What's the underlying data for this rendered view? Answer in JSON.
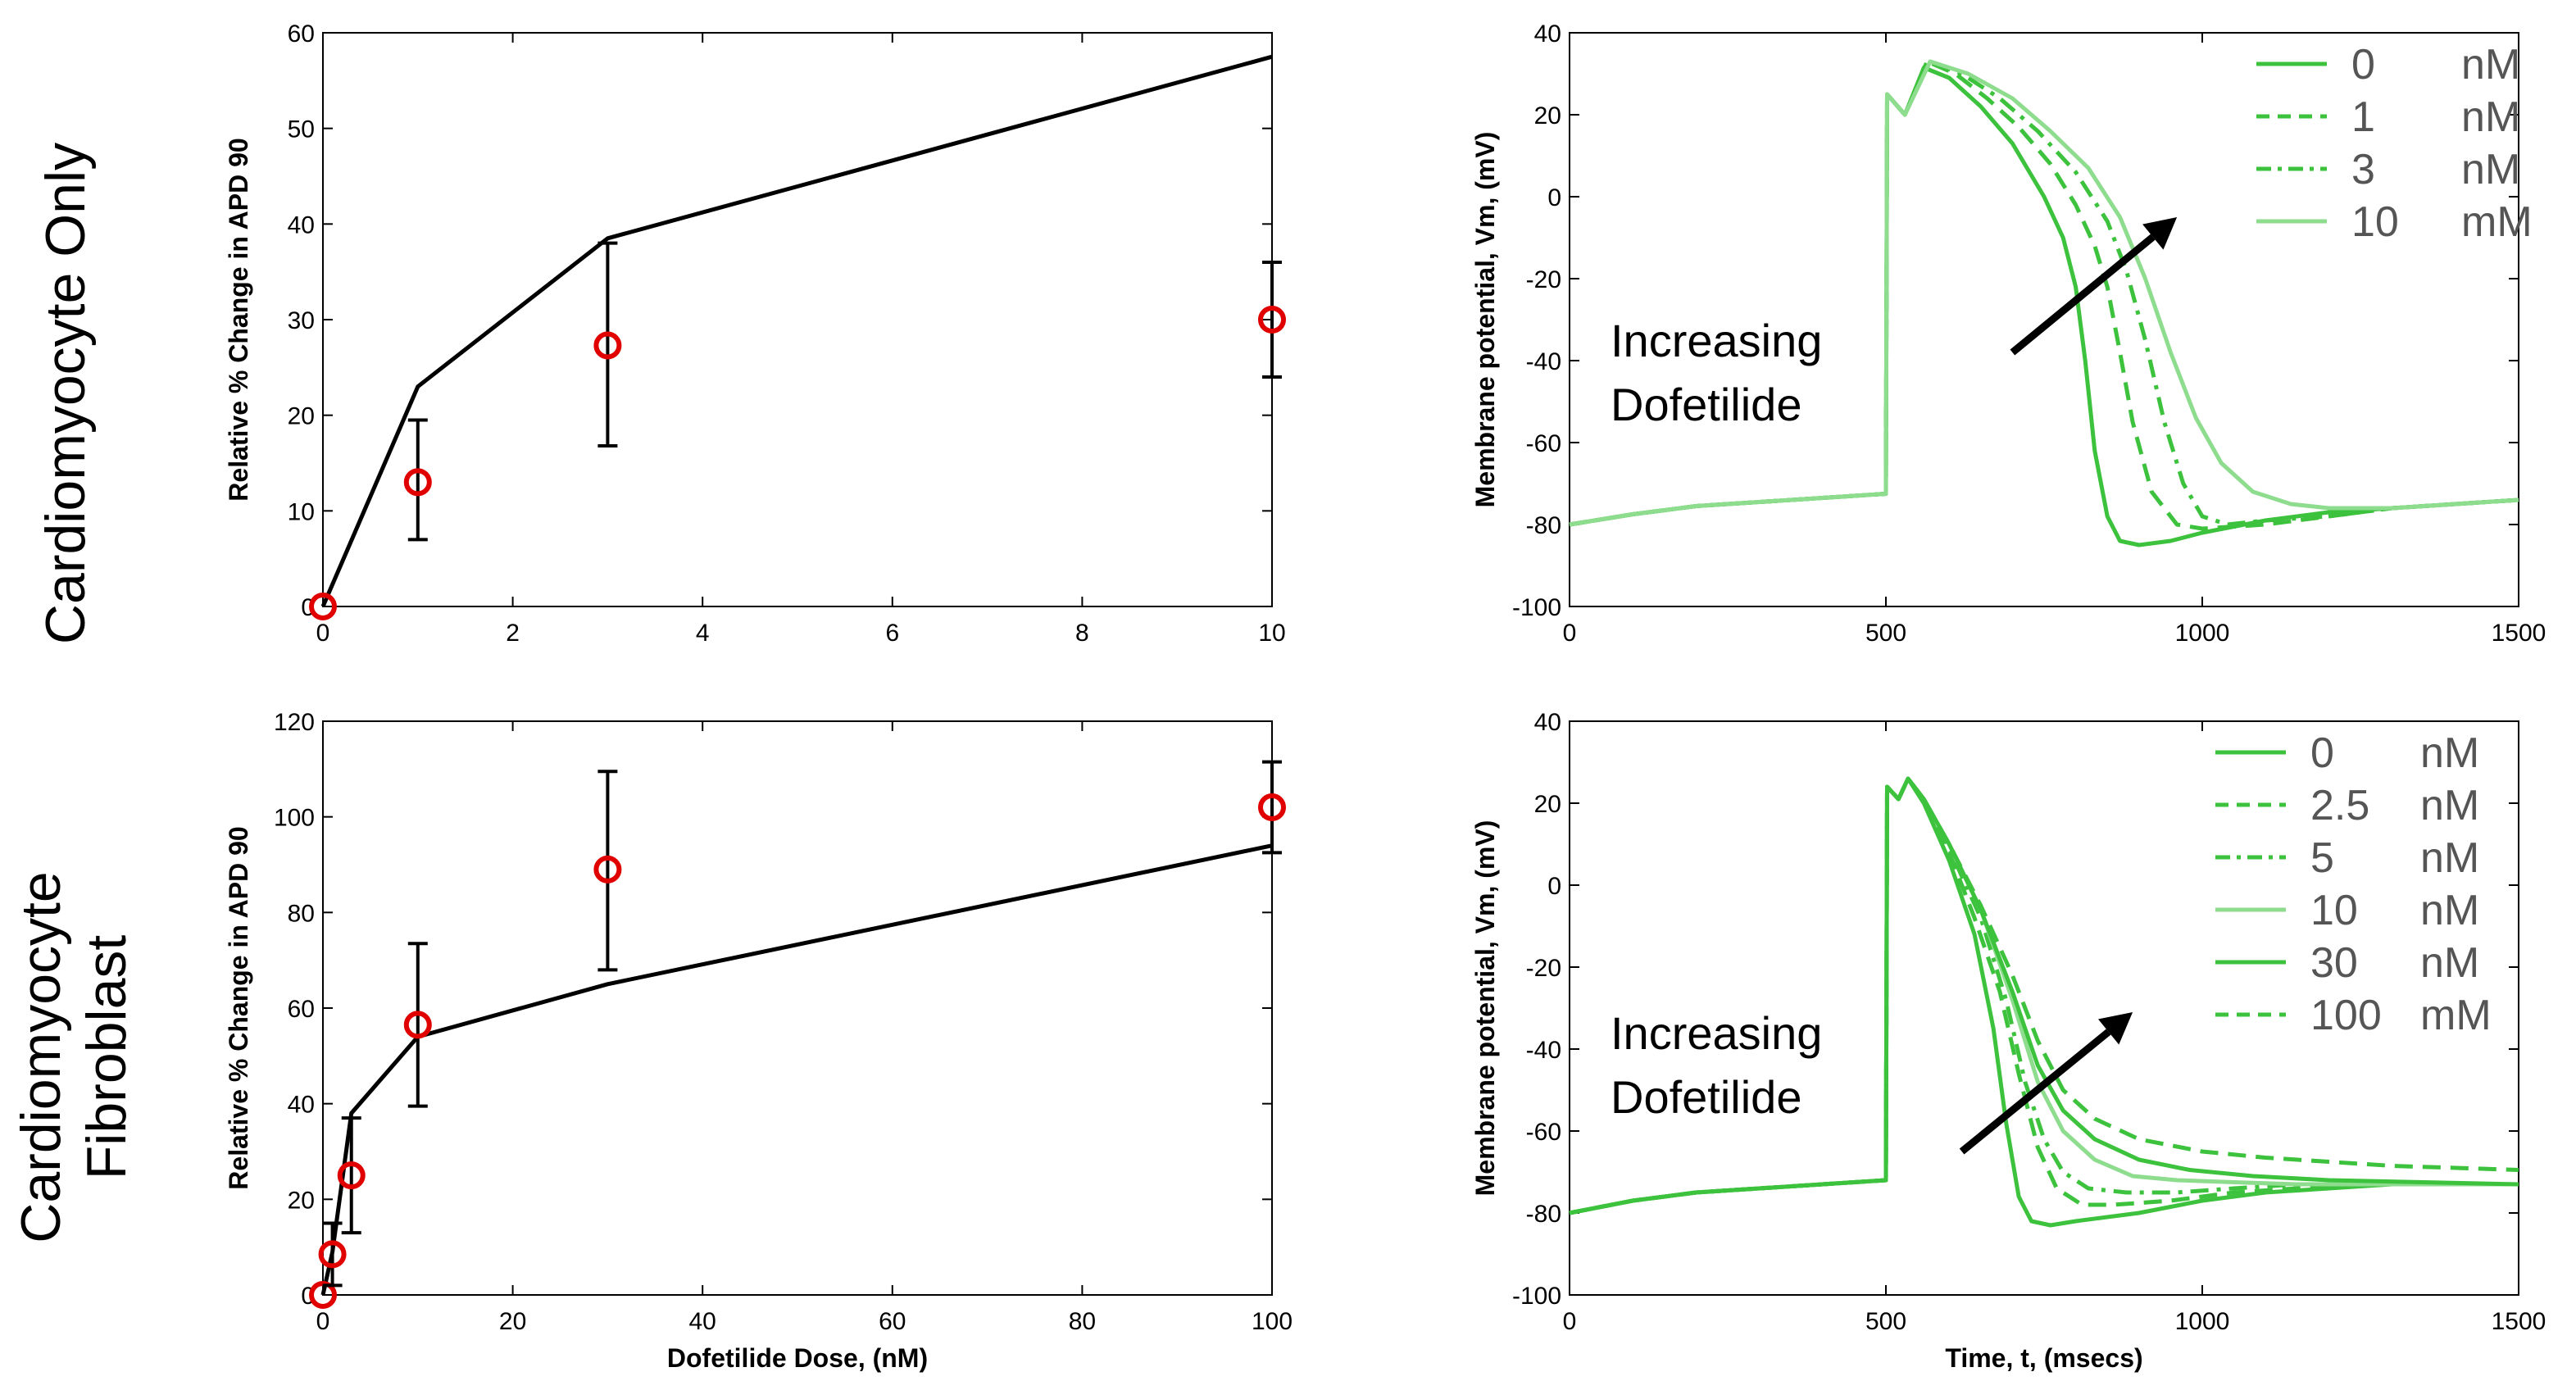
{
  "figure": {
    "row_labels": [
      {
        "lines": [
          "Cardiomyocyte Only"
        ]
      },
      {
        "lines": [
          "Cardiomyocyte",
          "Fibroblast"
        ]
      }
    ]
  },
  "colors": {
    "axis": "#000000",
    "model_line": "#000000",
    "marker": "#e00000",
    "trace": "#3cc23c",
    "trace_light": "#8edc8e",
    "arrow": "#000000"
  },
  "chart_data": [
    {
      "id": "dose_only",
      "type": "line",
      "title": "",
      "xlabel": "",
      "ylabel": "Relative % Change in APD 90",
      "xlim": [
        0,
        10
      ],
      "ylim": [
        0,
        60
      ],
      "xticks": [
        0,
        2,
        4,
        6,
        8,
        10
      ],
      "yticks": [
        0,
        10,
        20,
        30,
        40,
        50,
        60
      ],
      "grid": false,
      "series": [
        {
          "name": "Model",
          "x": [
            0,
            1,
            3,
            10
          ],
          "y": [
            0,
            23,
            38.5,
            57.5
          ]
        }
      ],
      "points": [
        {
          "x": 0,
          "y": 0,
          "err_lo": 0,
          "err_hi": 0
        },
        {
          "x": 1,
          "y": 13,
          "err_lo": 7,
          "err_hi": 19.5
        },
        {
          "x": 3,
          "y": 27.3,
          "err_lo": 16.8,
          "err_hi": 38
        },
        {
          "x": 10,
          "y": 30,
          "err_lo": 24,
          "err_hi": 36
        }
      ]
    },
    {
      "id": "dose_fibro",
      "type": "line",
      "title": "",
      "xlabel": "Dofetilide Dose, (nM)",
      "ylabel": "Relative % Change in APD 90",
      "xlim": [
        0,
        100
      ],
      "ylim": [
        0,
        120
      ],
      "xticks": [
        0,
        20,
        40,
        60,
        80,
        100
      ],
      "yticks": [
        0,
        20,
        40,
        60,
        80,
        100,
        120
      ],
      "grid": false,
      "series": [
        {
          "name": "Model",
          "x": [
            0,
            1,
            3,
            10,
            30,
            100
          ],
          "y": [
            0,
            9,
            38,
            54,
            65,
            94
          ]
        }
      ],
      "points": [
        {
          "x": 0,
          "y": 0,
          "err_lo": 0,
          "err_hi": 0
        },
        {
          "x": 1,
          "y": 8.5,
          "err_lo": 2,
          "err_hi": 15
        },
        {
          "x": 3,
          "y": 25,
          "err_lo": 13,
          "err_hi": 37
        },
        {
          "x": 10,
          "y": 56.5,
          "err_lo": 39.5,
          "err_hi": 73.5
        },
        {
          "x": 30,
          "y": 89,
          "err_lo": 68,
          "err_hi": 109.5
        },
        {
          "x": 100,
          "y": 102,
          "err_lo": 92.5,
          "err_hi": 111.5
        }
      ]
    },
    {
      "id": "ap_only",
      "type": "line",
      "title": "",
      "xlabel": "",
      "ylabel": "Membrane potential, V_m, (mV)",
      "xlim": [
        0,
        1500
      ],
      "ylim": [
        -100,
        40
      ],
      "xticks": [
        0,
        500,
        1000,
        1500
      ],
      "yticks": [
        -100,
        -80,
        -60,
        -40,
        -20,
        0,
        20,
        40
      ],
      "grid": false,
      "annotation": {
        "lines": [
          "Increasing",
          "Dofetilide"
        ]
      },
      "arrow": {
        "x1": 700,
        "y1": -38,
        "x2": 960,
        "y2": -5
      },
      "legend": {
        "position": "top-right",
        "entries": [
          {
            "value": "0",
            "unit": "nM",
            "style": "solid"
          },
          {
            "value": "1",
            "unit": "nM",
            "style": "dash"
          },
          {
            "value": "3",
            "unit": "nM",
            "style": "dashdot"
          },
          {
            "value": "10",
            "unit": "mM",
            "style": "light"
          }
        ]
      },
      "series": [
        {
          "name": "0 nM",
          "style": "solid",
          "x": [
            0,
            100,
            200,
            300,
            400,
            500,
            502,
            530,
            560,
            600,
            650,
            700,
            750,
            780,
            800,
            815,
            830,
            850,
            870,
            900,
            950,
            1000,
            1100,
            1200,
            1300,
            1400,
            1500
          ],
          "y": [
            -80,
            -77.5,
            -75.5,
            -74.5,
            -73.5,
            -72.5,
            25,
            20,
            31.5,
            29,
            22,
            13,
            0,
            -10,
            -22,
            -40,
            -62,
            -78,
            -84,
            -85,
            -84,
            -82,
            -79,
            -77,
            -76,
            -75,
            -74
          ]
        },
        {
          "name": "1 nM",
          "style": "dash",
          "x": [
            0,
            100,
            200,
            300,
            400,
            500,
            502,
            530,
            565,
            610,
            660,
            710,
            760,
            800,
            830,
            850,
            870,
            890,
            920,
            960,
            1000,
            1100,
            1200,
            1300,
            1400,
            1500
          ],
          "y": [
            -80,
            -77.5,
            -75.5,
            -74.5,
            -73.5,
            -72.5,
            25,
            20,
            33,
            30,
            24,
            17,
            8,
            -2,
            -12,
            -22,
            -38,
            -55,
            -72,
            -80,
            -81,
            -80,
            -78,
            -76,
            -75,
            -74
          ]
        },
        {
          "name": "3 nM",
          "style": "dashdot",
          "x": [
            0,
            100,
            200,
            300,
            400,
            500,
            502,
            530,
            565,
            620,
            680,
            740,
            800,
            850,
            880,
            910,
            940,
            970,
            1000,
            1040,
            1100,
            1200,
            1300,
            1400,
            1500
          ],
          "y": [
            -80,
            -77.5,
            -75.5,
            -74.5,
            -73.5,
            -72.5,
            25,
            20,
            33,
            30,
            24,
            16,
            6,
            -6,
            -18,
            -35,
            -55,
            -70,
            -78,
            -80,
            -79,
            -78,
            -76,
            -75,
            -74
          ]
        },
        {
          "name": "10 mM",
          "style": "light",
          "x": [
            0,
            100,
            200,
            300,
            400,
            500,
            502,
            530,
            570,
            630,
            700,
            760,
            820,
            870,
            910,
            950,
            990,
            1030,
            1080,
            1140,
            1200,
            1300,
            1400,
            1500
          ],
          "y": [
            -80,
            -77.5,
            -75.5,
            -74.5,
            -73.5,
            -72.5,
            25,
            20,
            33,
            30,
            24,
            16,
            7,
            -5,
            -20,
            -38,
            -54,
            -65,
            -72,
            -75,
            -76,
            -76,
            -75,
            -74
          ]
        }
      ]
    },
    {
      "id": "ap_fibro",
      "type": "line",
      "title": "",
      "xlabel": "Time, t, (msecs)",
      "ylabel": "Membrane potential, V_m, (mV)",
      "xlim": [
        0,
        1500
      ],
      "ylim": [
        -100,
        40
      ],
      "xticks": [
        0,
        500,
        1000,
        1500
      ],
      "yticks": [
        -100,
        -80,
        -60,
        -40,
        -20,
        0,
        20,
        40
      ],
      "grid": false,
      "annotation": {
        "lines": [
          "Increasing",
          "Dofetilide"
        ]
      },
      "arrow": {
        "x1": 620,
        "y1": -65,
        "x2": 890,
        "y2": -31
      },
      "legend": {
        "position": "top-right",
        "entries": [
          {
            "value": "0",
            "unit": "nM",
            "style": "solid"
          },
          {
            "value": "2.5",
            "unit": "nM",
            "style": "dash"
          },
          {
            "value": "5",
            "unit": "nM",
            "style": "dashdot"
          },
          {
            "value": "10",
            "unit": "nM",
            "style": "light"
          },
          {
            "value": "30",
            "unit": "nM",
            "style": "solid"
          },
          {
            "value": "100",
            "unit": "mM",
            "style": "dash"
          }
        ]
      },
      "series": [
        {
          "name": "0 nM",
          "style": "solid",
          "x": [
            0,
            100,
            200,
            300,
            400,
            500,
            502,
            520,
            535,
            560,
            600,
            640,
            670,
            690,
            710,
            730,
            760,
            800,
            900,
            1000,
            1100,
            1200,
            1300,
            1400,
            1500
          ],
          "y": [
            -80,
            -77,
            -75,
            -74,
            -73,
            -72,
            24,
            21,
            26,
            20,
            6,
            -12,
            -35,
            -58,
            -76,
            -82,
            -83,
            -82,
            -80,
            -77,
            -75,
            -74,
            -73,
            -73,
            -73
          ]
        },
        {
          "name": "2.5 nM",
          "style": "dash",
          "x": [
            0,
            100,
            200,
            300,
            400,
            500,
            502,
            520,
            535,
            560,
            600,
            640,
            680,
            710,
            740,
            770,
            810,
            860,
            950,
            1050,
            1150,
            1250,
            1350,
            1500
          ],
          "y": [
            -80,
            -77,
            -75,
            -74,
            -73,
            -72,
            24,
            21,
            26,
            21,
            8,
            -8,
            -26,
            -46,
            -64,
            -74,
            -78,
            -78,
            -77,
            -75,
            -74,
            -73,
            -73,
            -73
          ]
        },
        {
          "name": "5 nM",
          "style": "dashdot",
          "x": [
            0,
            100,
            200,
            300,
            400,
            500,
            502,
            520,
            535,
            560,
            600,
            650,
            690,
            720,
            750,
            780,
            820,
            880,
            960,
            1050,
            1150,
            1250,
            1350,
            1500
          ],
          "y": [
            -80,
            -77,
            -75,
            -74,
            -73,
            -72,
            24,
            21,
            26,
            21,
            9,
            -8,
            -28,
            -48,
            -62,
            -70,
            -74,
            -75,
            -75,
            -74,
            -73,
            -73,
            -73,
            -73
          ]
        },
        {
          "name": "10 nM",
          "style": "light",
          "x": [
            0,
            100,
            200,
            300,
            400,
            500,
            502,
            520,
            535,
            560,
            600,
            650,
            700,
            740,
            780,
            830,
            890,
            960,
            1050,
            1150,
            1250,
            1350,
            1500
          ],
          "y": [
            -80,
            -77,
            -75,
            -74,
            -73,
            -72,
            24,
            21,
            26,
            21,
            10,
            -6,
            -28,
            -48,
            -60,
            -67,
            -71,
            -72,
            -72.5,
            -73,
            -73,
            -73,
            -73
          ]
        },
        {
          "name": "30 nM",
          "style": "solid",
          "x": [
            0,
            100,
            200,
            300,
            400,
            500,
            502,
            520,
            535,
            560,
            600,
            650,
            700,
            740,
            780,
            830,
            900,
            980,
            1080,
            1200,
            1350,
            1500
          ],
          "y": [
            -80,
            -77,
            -75,
            -74,
            -73,
            -72,
            24,
            21,
            26,
            21,
            10,
            -6,
            -26,
            -44,
            -55,
            -62,
            -67,
            -69.5,
            -71,
            -72,
            -72.5,
            -73
          ]
        },
        {
          "name": "100 mM",
          "style": "dash",
          "x": [
            0,
            100,
            200,
            300,
            400,
            500,
            502,
            520,
            535,
            560,
            600,
            650,
            700,
            740,
            780,
            830,
            900,
            1000,
            1100,
            1200,
            1300,
            1400,
            1500
          ],
          "y": [
            -80,
            -77,
            -75,
            -74,
            -73,
            -72,
            24,
            21,
            26,
            21,
            10,
            -5,
            -22,
            -38,
            -50,
            -57,
            -62,
            -65,
            -66.5,
            -67.5,
            -68.5,
            -69,
            -69.5
          ]
        }
      ]
    }
  ]
}
